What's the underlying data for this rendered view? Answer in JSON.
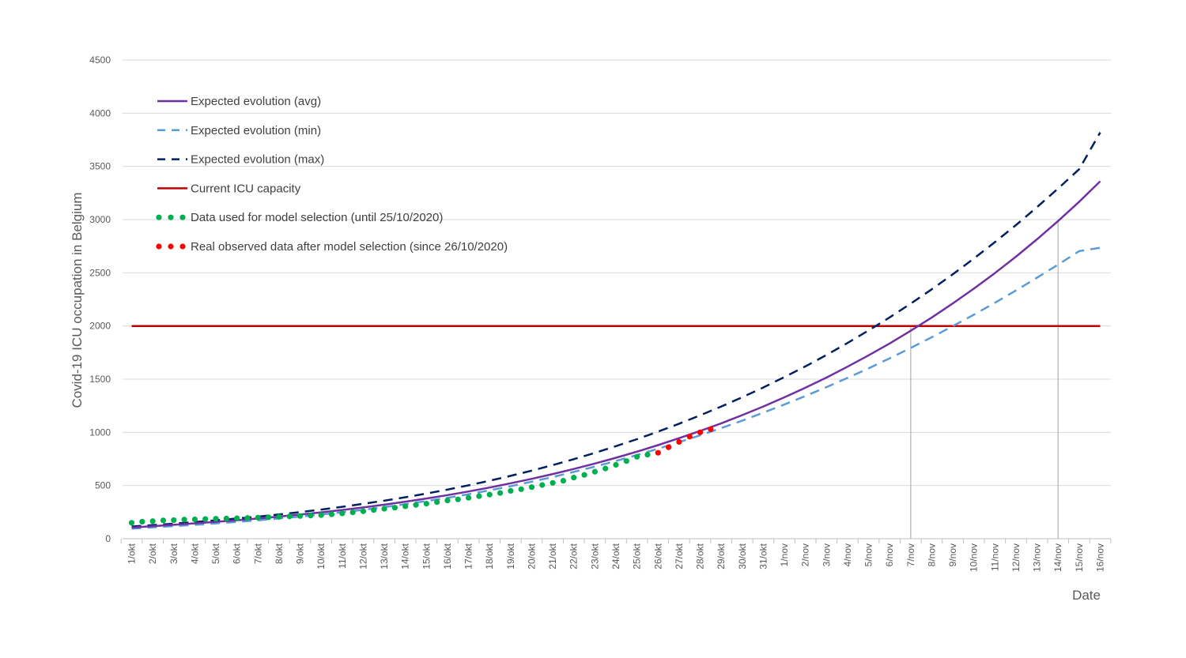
{
  "chart_data": {
    "type": "line",
    "title": "",
    "ylabel": "Covid-19 ICU occupation in Belgium",
    "xlabel": "Date",
    "ylim": [
      0,
      4500
    ],
    "yticks": [
      0,
      500,
      1000,
      1500,
      2000,
      2500,
      3000,
      3500,
      4000,
      4500
    ],
    "grid": true,
    "legend_position": "top-left",
    "categories": [
      "1/okt",
      "2/okt",
      "3/okt",
      "4/okt",
      "5/okt",
      "6/okt",
      "7/okt",
      "8/okt",
      "9/okt",
      "10/okt",
      "11/okt",
      "12/okt",
      "13/okt",
      "14/okt",
      "15/okt",
      "16/okt",
      "17/okt",
      "18/okt",
      "19/okt",
      "20/okt",
      "21/okt",
      "22/okt",
      "23/okt",
      "24/okt",
      "25/okt",
      "26/okt",
      "27/okt",
      "28/okt",
      "29/okt",
      "30/okt",
      "31/okt",
      "1/nov",
      "2/nov",
      "3/nov",
      "4/nov",
      "5/nov",
      "6/nov",
      "7/nov",
      "8/nov",
      "9/nov",
      "10/nov",
      "11/nov",
      "12/nov",
      "13/nov",
      "14/nov",
      "15/nov",
      "16/nov"
    ],
    "series": [
      {
        "name": "Expected evolution (avg)",
        "style": "solid",
        "color": "#7030a0",
        "values": [
          105,
          118,
          131,
          145,
          159,
          174,
          190,
          208,
          227,
          248,
          270,
          294,
          320,
          348,
          378,
          410,
          444,
          481,
          521,
          563,
          608,
          656,
          707,
          761,
          818,
          880,
          945,
          1013,
          1085,
          1162,
          1243,
          1329,
          1420,
          1515,
          1617,
          1724,
          1836,
          1955,
          2080,
          2212,
          2351,
          2497,
          2652,
          2815,
          2987,
          3168,
          3360
        ]
      },
      {
        "name": "Expected evolution (min)",
        "style": "dashed",
        "color": "#5b9bd5",
        "values": [
          95,
          107,
          119,
          131,
          144,
          158,
          173,
          190,
          208,
          228,
          249,
          272,
          297,
          325,
          354,
          385,
          418,
          455,
          494,
          536,
          580,
          628,
          678,
          731,
          787,
          846,
          908,
          972,
          1040,
          1110,
          1185,
          1262,
          1342,
          1425,
          1512,
          1602,
          1696,
          1793,
          1894,
          1999,
          2106,
          2218,
          2334,
          2454,
          2577,
          2704,
          2735
        ]
      },
      {
        "name": "Expected evolution (max)",
        "style": "dashed",
        "color": "#002060",
        "values": [
          115,
          128,
          142,
          157,
          173,
          190,
          208,
          228,
          250,
          274,
          300,
          328,
          358,
          390,
          425,
          462,
          502,
          545,
          591,
          640,
          692,
          748,
          807,
          870,
          936,
          1007,
          1081,
          1160,
          1243,
          1330,
          1422,
          1519,
          1620,
          1727,
          1840,
          1958,
          2081,
          2210,
          2345,
          2486,
          2634,
          2788,
          2949,
          3117,
          3292,
          3474,
          3820
        ]
      },
      {
        "name": "Current ICU capacity",
        "style": "solid",
        "color": "#c00000",
        "values": [
          2000,
          2000,
          2000,
          2000,
          2000,
          2000,
          2000,
          2000,
          2000,
          2000,
          2000,
          2000,
          2000,
          2000,
          2000,
          2000,
          2000,
          2000,
          2000,
          2000,
          2000,
          2000,
          2000,
          2000,
          2000,
          2000,
          2000,
          2000,
          2000,
          2000,
          2000,
          2000,
          2000,
          2000,
          2000,
          2000,
          2000,
          2000,
          2000,
          2000,
          2000,
          2000,
          2000,
          2000,
          2000,
          2000,
          2000
        ]
      },
      {
        "name": "Data used for  model selection (until 25/10/2020)",
        "style": "dots",
        "color": "#00b050",
        "x": [
          1,
          1.5,
          2,
          2.5,
          3,
          3.5,
          4,
          4.5,
          5,
          5.5,
          6,
          6.5,
          7,
          7.5,
          8,
          8.5,
          9,
          9.5,
          10,
          10.5,
          11,
          11.5,
          12,
          12.5,
          13,
          13.5,
          14,
          14.5,
          15,
          15.5,
          16,
          16.5,
          17,
          17.5,
          18,
          18.5,
          19,
          19.5,
          20,
          20.5,
          21,
          21.5,
          22,
          22.5,
          23,
          23.5,
          24,
          24.5,
          25,
          25.5
        ],
        "values": [
          150,
          160,
          165,
          172,
          175,
          180,
          182,
          185,
          188,
          190,
          192,
          195,
          198,
          202,
          206,
          210,
          214,
          218,
          222,
          230,
          238,
          248,
          258,
          270,
          282,
          292,
          305,
          318,
          330,
          345,
          360,
          370,
          385,
          400,
          415,
          430,
          450,
          465,
          485,
          505,
          525,
          545,
          575,
          600,
          630,
          660,
          695,
          730,
          770,
          790
        ]
      },
      {
        "name": "Real observed data after model selection (since 26/10/2020)",
        "style": "dots",
        "color": "#ff0000",
        "x": [
          26,
          26.5,
          27,
          27.5,
          28,
          28.5
        ],
        "values": [
          808,
          860,
          910,
          960,
          1000,
          1030
        ]
      }
    ],
    "vertical_markers": [
      {
        "at": "7/nov",
        "value": 2000
      },
      {
        "at": "14/nov",
        "value": 3000
      }
    ]
  }
}
